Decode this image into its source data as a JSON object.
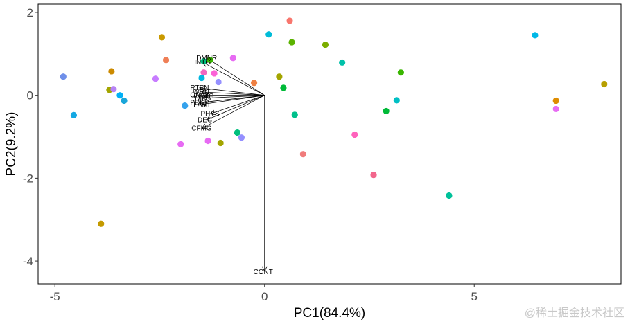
{
  "chart_data": {
    "type": "scatter",
    "subtype": "pca-biplot",
    "title": "",
    "xlabel": "PC1(84.4%)",
    "ylabel": "PC2(9.2%)",
    "xlim": [
      -5.4,
      8.5
    ],
    "ylim": [
      -4.55,
      2.2
    ],
    "xticks": [
      -5,
      0,
      5
    ],
    "yticks": [
      -4,
      -2,
      0,
      2
    ],
    "grid": false,
    "legend": "none",
    "points": [
      {
        "x": -4.8,
        "y": 0.45,
        "color": "#6f8fe9"
      },
      {
        "x": -4.55,
        "y": -0.48,
        "color": "#14a8e3"
      },
      {
        "x": -3.65,
        "y": 0.58,
        "color": "#cc8a00"
      },
      {
        "x": -3.7,
        "y": 0.13,
        "color": "#a3a500"
      },
      {
        "x": -3.6,
        "y": 0.15,
        "color": "#b783f5"
      },
      {
        "x": -3.45,
        "y": 0.0,
        "color": "#00b0f6"
      },
      {
        "x": -3.35,
        "y": -0.13,
        "color": "#1aa6d9"
      },
      {
        "x": -3.9,
        "y": -3.1,
        "color": "#c49a00"
      },
      {
        "x": -2.45,
        "y": 1.4,
        "color": "#c99900"
      },
      {
        "x": -2.35,
        "y": 0.85,
        "color": "#ef7f56"
      },
      {
        "x": -2.6,
        "y": 0.4,
        "color": "#c77cff"
      },
      {
        "x": -1.9,
        "y": -0.25,
        "color": "#35a2ec"
      },
      {
        "x": -2.0,
        "y": -1.18,
        "color": "#e76bf3"
      },
      {
        "x": -1.45,
        "y": 0.82,
        "color": "#00bf7d"
      },
      {
        "x": -1.3,
        "y": 0.85,
        "color": "#39b600"
      },
      {
        "x": -1.45,
        "y": 0.55,
        "color": "#f066c0"
      },
      {
        "x": -1.5,
        "y": 0.42,
        "color": "#00b6e0"
      },
      {
        "x": -1.2,
        "y": 0.53,
        "color": "#fb61d7"
      },
      {
        "x": -1.1,
        "y": 0.32,
        "color": "#9590ff"
      },
      {
        "x": -1.35,
        "y": -1.1,
        "color": "#e76bf3"
      },
      {
        "x": -1.05,
        "y": -1.15,
        "color": "#a3a500"
      },
      {
        "x": -0.75,
        "y": 0.9,
        "color": "#e76bf3"
      },
      {
        "x": -0.65,
        "y": -0.9,
        "color": "#00bf7d"
      },
      {
        "x": -0.55,
        "y": -1.02,
        "color": "#9590ff"
      },
      {
        "x": -0.25,
        "y": 0.3,
        "color": "#ee8043"
      },
      {
        "x": 0.1,
        "y": 1.47,
        "color": "#00bcd8"
      },
      {
        "x": 0.35,
        "y": 0.45,
        "color": "#a3a500"
      },
      {
        "x": 0.45,
        "y": 0.18,
        "color": "#00ba38"
      },
      {
        "x": 0.6,
        "y": 1.8,
        "color": "#f8766d"
      },
      {
        "x": 0.65,
        "y": 1.28,
        "color": "#5bb300"
      },
      {
        "x": 0.72,
        "y": -0.47,
        "color": "#00c08b"
      },
      {
        "x": 0.92,
        "y": -1.42,
        "color": "#f07c7c"
      },
      {
        "x": 1.45,
        "y": 1.22,
        "color": "#7cae00"
      },
      {
        "x": 1.85,
        "y": 0.79,
        "color": "#00c1a9"
      },
      {
        "x": 2.15,
        "y": -0.95,
        "color": "#ff62bc"
      },
      {
        "x": 2.6,
        "y": -1.92,
        "color": "#f2668c"
      },
      {
        "x": 2.9,
        "y": -0.38,
        "color": "#00ba38"
      },
      {
        "x": 3.15,
        "y": -0.12,
        "color": "#00bfc4"
      },
      {
        "x": 3.25,
        "y": 0.55,
        "color": "#39b600"
      },
      {
        "x": 4.4,
        "y": -2.42,
        "color": "#00c19a"
      },
      {
        "x": 6.45,
        "y": 1.45,
        "color": "#00b8e7"
      },
      {
        "x": 6.95,
        "y": -0.13,
        "color": "#de8c00"
      },
      {
        "x": 6.95,
        "y": -0.33,
        "color": "#e76bf3"
      },
      {
        "x": 8.1,
        "y": 0.27,
        "color": "#b79f00"
      }
    ],
    "vectors": [
      {
        "label": "DMNR",
        "x": -1.38,
        "y": 0.9
      },
      {
        "label": "INTG",
        "x": -1.48,
        "y": 0.8
      },
      {
        "label": "RTEN",
        "x": -1.55,
        "y": 0.18
      },
      {
        "label": "WRIT",
        "x": -1.5,
        "y": 0.08
      },
      {
        "label": "ORAL",
        "x": -1.55,
        "y": 0.0
      },
      {
        "label": "DILG",
        "x": -1.47,
        "y": -0.07
      },
      {
        "label": "CFMG",
        "x": -1.45,
        "y": -0.02
      },
      {
        "label": "PREP",
        "x": -1.55,
        "y": -0.18
      },
      {
        "label": "FAMI",
        "x": -1.5,
        "y": -0.22
      },
      {
        "label": "PHYS",
        "x": -1.3,
        "y": -0.45
      },
      {
        "label": "DECI",
        "x": -1.4,
        "y": -0.6
      },
      {
        "label": "CFMG",
        "x": -1.5,
        "y": -0.8
      },
      {
        "label": "CONT",
        "x": 0.0,
        "y": -4.25
      }
    ]
  },
  "watermark": "@稀土掘金技术社区"
}
